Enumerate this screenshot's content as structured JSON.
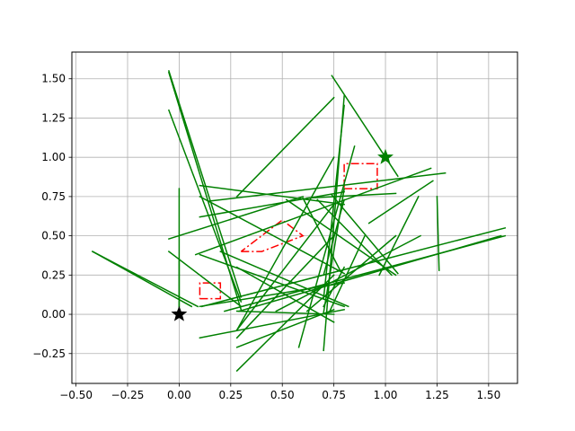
{
  "chart_data": {
    "type": "line",
    "title": "",
    "xlabel": "",
    "ylabel": "",
    "xlim": [
      -0.52,
      1.64
    ],
    "ylim": [
      -0.44,
      1.67
    ],
    "grid": true,
    "x_ticks": [
      "−0.50",
      "−0.25",
      "0.00",
      "0.25",
      "0.50",
      "0.75",
      "1.00",
      "1.25",
      "1.50"
    ],
    "x_tick_values": [
      -0.5,
      -0.25,
      0.0,
      0.25,
      0.5,
      0.75,
      1.0,
      1.25,
      1.5
    ],
    "y_ticks": [
      "−0.25",
      "0.00",
      "0.25",
      "0.50",
      "0.75",
      "1.00",
      "1.25",
      "1.50"
    ],
    "y_tick_values": [
      -0.25,
      0.0,
      0.25,
      0.5,
      0.75,
      1.0,
      1.25,
      1.5
    ],
    "colors": {
      "lines": "#008000",
      "obstacles": "#ff0000",
      "start": "#000000",
      "goal": "#008000",
      "grid": "#b0b0b0"
    },
    "green_segments": [
      [
        [
          0.11,
          1.58
        ],
        [
          0.05,
          0.55
        ]
      ],
      [
        [
          0.22,
          1.58
        ],
        [
          0.02,
          0.5
        ]
      ],
      [
        [
          0.29,
          1.56
        ],
        [
          0.02,
          0.5
        ]
      ],
      [
        [
          0.08,
          1.22
        ],
        [
          0.38,
          0.93
        ]
      ],
      [
        [
          0.14,
          1.29
        ],
        [
          0.72,
          0.9
        ]
      ],
      [
        [
          0.47,
          1.17
        ],
        [
          0.02,
          0.5
        ]
      ],
      [
        [
          0.74,
          1.06
        ],
        [
          1.52,
          0.88
        ]
      ],
      [
        [
          0.62,
          1.05
        ],
        [
          0.02,
          0.5
        ]
      ],
      [
        [
          0.62,
          1.05
        ],
        [
          0.74,
          0.77
        ]
      ],
      [
        [
          0.73,
          0.9
        ],
        [
          0.02,
          0.5
        ]
      ],
      [
        [
          1.25,
          1.26
        ],
        [
          0.75,
          0.28
        ]
      ],
      [
        [
          1.16,
          0.97
        ],
        [
          0.75,
          0.25
        ]
      ],
      [
        [
          1.23,
          0.92
        ],
        [
          0.85,
          0.58
        ]
      ],
      [
        [
          0.1,
          0.8
        ],
        [
          0.05,
          0.2
        ]
      ],
      [
        [
          0.1,
          0.8
        ],
        [
          0.82,
          0.7
        ]
      ],
      [
        [
          0.1,
          0.8
        ],
        [
          0.62,
          0.78
        ]
      ],
      [
        [
          0.1,
          0.8
        ],
        [
          0.38,
          0.05
        ]
      ],
      [
        [
          0.1,
          0.8
        ],
        [
          -0.15,
          0.03
        ]
      ],
      [
        [
          0.2,
          0.82
        ],
        [
          0.4,
          0.05
        ]
      ],
      [
        [
          -0.05,
          0.6
        ],
        [
          0.48,
          0.75
        ]
      ],
      [
        [
          0.6,
          0.78
        ],
        [
          0.74,
          0.28
        ]
      ],
      [
        [
          0.52,
          1.05
        ],
        [
          0.73,
          0.25
        ]
      ],
      [
        [
          0.74,
          1.06
        ],
        [
          0.76,
          0.26
        ]
      ],
      [
        [
          0.67,
          1.03
        ],
        [
          0.73,
          0.25
        ]
      ],
      [
        [
          0.75,
          0.28
        ],
        [
          1.38,
          0.75
        ]
      ],
      [
        [
          0.75,
          0.28
        ],
        [
          0.5,
          -0.15
        ]
      ],
      [
        [
          0.75,
          0.28
        ],
        [
          0.25,
          -0.36
        ]
      ],
      [
        [
          0.75,
          0.28
        ],
        [
          0.7,
          -0.1
        ]
      ],
      [
        [
          0.75,
          0.28
        ],
        [
          1.0,
          -0.1
        ]
      ],
      [
        [
          0.75,
          0.28
        ],
        [
          0.03,
          -0.21
        ]
      ],
      [
        [
          0.75,
          0.28
        ],
        [
          0.0,
          0.02
        ]
      ],
      [
        [
          0.75,
          0.28
        ],
        [
          -0.05,
          0.3
        ]
      ],
      [
        [
          0.85,
          0.58
        ],
        [
          1.07,
          -0.21
        ]
      ],
      [
        [
          0.8,
          0.7
        ],
        [
          1.33,
          0.1
        ]
      ],
      [
        [
          0.8,
          0.7
        ],
        [
          0.73,
          0.25
        ]
      ],
      [
        [
          0.8,
          0.7
        ],
        [
          0.3,
          0.05
        ]
      ],
      [
        [
          0.8,
          0.7
        ],
        [
          1.39,
          -0.23
        ]
      ],
      [
        [
          -0.05,
          0.3
        ],
        [
          1.55,
          0.11
        ]
      ],
      [
        [
          -0.05,
          0.3
        ],
        [
          1.54,
          0.03
        ]
      ],
      [
        [
          -0.05,
          0.3
        ],
        [
          0.4,
          0.05
        ]
      ],
      [
        [
          -0.05,
          0.3
        ],
        [
          1.3,
          0.08
        ]
      ],
      [
        [
          -0.42,
          0.09
        ],
        [
          0.4,
          0.05
        ]
      ],
      [
        [
          -0.42,
          0.06
        ],
        [
          0.4,
          0.05
        ]
      ],
      [
        [
          0.0,
          0.0
        ],
        [
          0.8,
          0.0
        ]
      ],
      [
        [
          0.0,
          0.0
        ],
        [
          0.35,
          0.05
        ]
      ],
      [
        [
          0.8,
          0.7
        ],
        [
          0.8,
          0.01
        ]
      ],
      [
        [
          0.1,
          0.8
        ],
        [
          0.75,
          0.26
        ]
      ]
    ],
    "obstacles": [
      [
        [
          0.8,
          0.8
        ],
        [
          0.96,
          0.8
        ],
        [
          0.96,
          0.96
        ],
        [
          0.8,
          0.96
        ],
        [
          0.8,
          0.8
        ]
      ],
      [
        [
          0.1,
          0.1
        ],
        [
          0.2,
          0.1
        ],
        [
          0.2,
          0.2
        ],
        [
          0.1,
          0.2
        ],
        [
          0.1,
          0.1
        ]
      ],
      [
        [
          0.3,
          0.4
        ],
        [
          0.4,
          0.4
        ],
        [
          0.6,
          0.5
        ],
        [
          0.5,
          0.6
        ],
        [
          0.3,
          0.4
        ]
      ]
    ],
    "start": [
      0.0,
      0.0
    ],
    "goal": [
      1.0,
      1.0
    ]
  }
}
